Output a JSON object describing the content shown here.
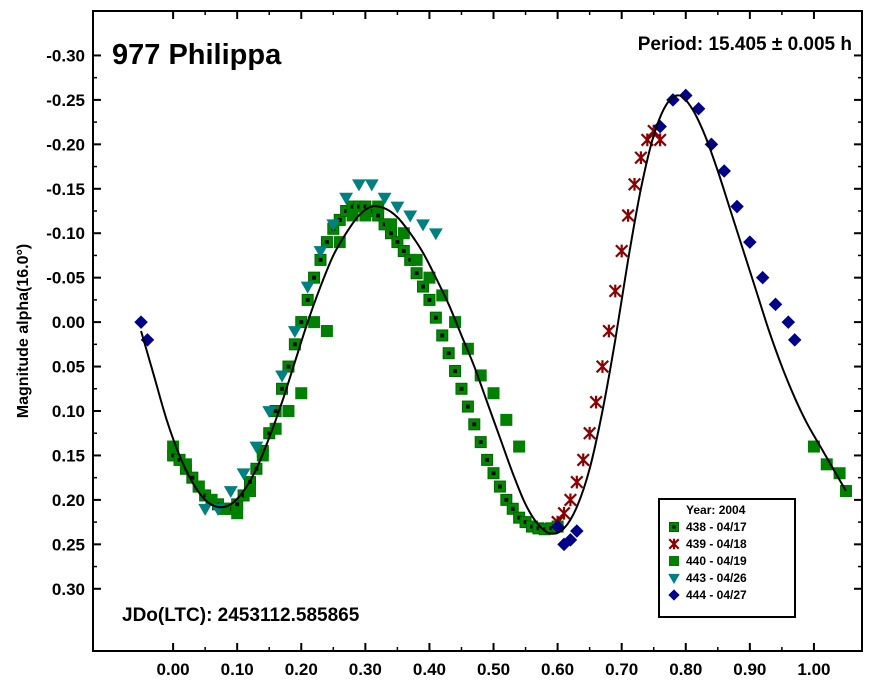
{
  "chart_data": {
    "type": "scatter",
    "title": "977 Philippa",
    "period_text": "Period: 15.405 ± 0.005 h",
    "epoch_text": "JDo(LTC): 2453112.585865",
    "ylabel": "Magnitude alpha(16.0°)",
    "xlabel": "",
    "xlim": [
      -0.125,
      1.075
    ],
    "ylim": [
      -0.35,
      0.37
    ],
    "y_inverted": true,
    "grid": false,
    "x_ticks": [
      0.0,
      0.1,
      0.2,
      0.3,
      0.4,
      0.5,
      0.6,
      0.7,
      0.8,
      0.9,
      1.0
    ],
    "x_tick_labels": [
      "0.00",
      "0.10",
      "0.20",
      "0.30",
      "0.40",
      "0.50",
      "0.60",
      "0.70",
      "0.80",
      "0.90",
      "1.00"
    ],
    "y_ticks": [
      -0.3,
      -0.25,
      -0.2,
      -0.15,
      -0.1,
      -0.05,
      0.0,
      0.05,
      0.1,
      0.15,
      0.2,
      0.25,
      0.3
    ],
    "y_tick_labels": [
      "-0.30",
      "-0.25",
      "-0.20",
      "-0.15",
      "-0.10",
      "-0.05",
      "0.00",
      "0.05",
      "0.10",
      "0.15",
      "0.20",
      "0.25",
      "0.30"
    ],
    "legend": {
      "title": "Year: 2004",
      "position": "bottom-right"
    },
    "series": [
      {
        "name": "438 - 04/17",
        "marker": "square-dot",
        "color": "#006600",
        "fill": "#008800",
        "x": [
          0.0,
          0.01,
          0.02,
          0.03,
          0.04,
          0.05,
          0.06,
          0.07,
          0.08,
          0.09,
          0.1,
          0.11,
          0.12,
          0.13,
          0.14,
          0.15,
          0.16,
          0.17,
          0.18,
          0.19,
          0.2,
          0.21,
          0.22,
          0.23,
          0.24,
          0.25,
          0.26,
          0.27,
          0.28,
          0.29,
          0.3,
          0.31,
          0.32,
          0.33,
          0.34,
          0.35,
          0.36,
          0.37,
          0.38,
          0.39,
          0.4,
          0.41,
          0.42,
          0.43,
          0.44,
          0.45,
          0.46,
          0.47,
          0.48,
          0.49,
          0.5,
          0.51,
          0.52,
          0.53,
          0.54,
          0.55,
          0.56,
          0.57,
          0.58,
          0.59,
          0.6
        ],
        "y": [
          0.15,
          0.155,
          0.165,
          0.175,
          0.185,
          0.195,
          0.2,
          0.205,
          0.21,
          0.21,
          0.205,
          0.195,
          0.18,
          0.165,
          0.145,
          0.125,
          0.1,
          0.075,
          0.05,
          0.025,
          0.0,
          -0.025,
          -0.05,
          -0.07,
          -0.09,
          -0.105,
          -0.115,
          -0.125,
          -0.13,
          -0.13,
          -0.13,
          -0.125,
          -0.12,
          -0.11,
          -0.1,
          -0.09,
          -0.08,
          -0.07,
          -0.055,
          -0.04,
          -0.025,
          -0.005,
          0.015,
          0.035,
          0.055,
          0.075,
          0.095,
          0.115,
          0.135,
          0.155,
          0.17,
          0.185,
          0.2,
          0.21,
          0.22,
          0.225,
          0.23,
          0.232,
          0.233,
          0.232,
          0.23
        ]
      },
      {
        "name": "439 - 04/18",
        "marker": "asterisk",
        "color": "#8b0000",
        "x": [
          0.6,
          0.61,
          0.62,
          0.63,
          0.64,
          0.65,
          0.66,
          0.67,
          0.68,
          0.69,
          0.7,
          0.71,
          0.72,
          0.73,
          0.74,
          0.75,
          0.76
        ],
        "y": [
          0.225,
          0.215,
          0.2,
          0.18,
          0.155,
          0.125,
          0.09,
          0.05,
          0.01,
          -0.035,
          -0.08,
          -0.12,
          -0.155,
          -0.185,
          -0.205,
          -0.215,
          -0.205
        ]
      },
      {
        "name": "440 - 04/19",
        "marker": "square",
        "color": "#008000",
        "x": [
          0.0,
          0.02,
          0.04,
          0.06,
          0.08,
          0.1,
          0.12,
          0.14,
          0.16,
          0.18,
          0.2,
          0.22,
          0.24,
          0.26,
          0.28,
          0.3,
          0.32,
          0.34,
          0.36,
          0.38,
          0.4,
          0.42,
          0.44,
          0.46,
          0.48,
          0.5,
          0.52,
          0.54,
          1.0,
          1.02,
          1.04,
          1.05
        ],
        "y": [
          0.14,
          0.16,
          0.185,
          0.2,
          0.21,
          0.215,
          0.19,
          0.15,
          0.12,
          0.1,
          0.08,
          0.0,
          0.01,
          -0.09,
          -0.12,
          -0.12,
          -0.13,
          -0.11,
          -0.1,
          -0.07,
          -0.05,
          -0.03,
          0.0,
          0.03,
          0.06,
          0.08,
          0.11,
          0.14,
          0.14,
          0.16,
          0.17,
          0.19
        ]
      },
      {
        "name": "443 - 04/26",
        "marker": "triangle-down",
        "color": "#008080",
        "x": [
          0.05,
          0.07,
          0.09,
          0.11,
          0.13,
          0.15,
          0.17,
          0.19,
          0.21,
          0.23,
          0.25,
          0.27,
          0.29,
          0.31,
          0.33,
          0.35,
          0.37,
          0.39,
          0.41
        ],
        "y": [
          0.21,
          0.21,
          0.19,
          0.17,
          0.14,
          0.1,
          0.06,
          0.01,
          -0.04,
          -0.08,
          -0.11,
          -0.14,
          -0.155,
          -0.155,
          -0.14,
          -0.13,
          -0.12,
          -0.11,
          -0.1
        ]
      },
      {
        "name": "444 - 04/27",
        "marker": "diamond",
        "color": "#00008b",
        "x": [
          -0.05,
          -0.04,
          0.6,
          0.61,
          0.62,
          0.63,
          0.76,
          0.78,
          0.8,
          0.82,
          0.84,
          0.86,
          0.88,
          0.9,
          0.92,
          0.94,
          0.96,
          0.97
        ],
        "y": [
          0.0,
          0.02,
          0.23,
          0.25,
          0.245,
          0.235,
          -0.22,
          -0.25,
          -0.255,
          -0.24,
          -0.2,
          -0.17,
          -0.13,
          -0.09,
          -0.05,
          -0.02,
          0.0,
          0.02
        ]
      }
    ],
    "fit_curve": {
      "x": [
        -0.05,
        -0.03,
        -0.01,
        0.01,
        0.03,
        0.05,
        0.07,
        0.09,
        0.11,
        0.13,
        0.15,
        0.17,
        0.19,
        0.21,
        0.23,
        0.25,
        0.27,
        0.29,
        0.31,
        0.33,
        0.35,
        0.37,
        0.39,
        0.41,
        0.43,
        0.45,
        0.47,
        0.49,
        0.51,
        0.53,
        0.55,
        0.57,
        0.59,
        0.61,
        0.63,
        0.65,
        0.67,
        0.69,
        0.71,
        0.73,
        0.75,
        0.77,
        0.79,
        0.81,
        0.83,
        0.85,
        0.87,
        0.89,
        0.91,
        0.93,
        0.95,
        0.97,
        0.99,
        1.01,
        1.03,
        1.05
      ],
      "y": [
        0.01,
        0.06,
        0.11,
        0.15,
        0.18,
        0.2,
        0.208,
        0.205,
        0.19,
        0.165,
        0.13,
        0.09,
        0.045,
        0.0,
        -0.04,
        -0.075,
        -0.1,
        -0.12,
        -0.13,
        -0.128,
        -0.118,
        -0.1,
        -0.078,
        -0.05,
        -0.02,
        0.015,
        0.05,
        0.09,
        0.13,
        0.17,
        0.205,
        0.228,
        0.238,
        0.232,
        0.208,
        0.165,
        0.1,
        0.02,
        -0.07,
        -0.15,
        -0.21,
        -0.245,
        -0.255,
        -0.24,
        -0.21,
        -0.17,
        -0.125,
        -0.08,
        -0.035,
        0.01,
        0.05,
        0.085,
        0.115,
        0.14,
        0.165,
        0.19
      ]
    }
  }
}
